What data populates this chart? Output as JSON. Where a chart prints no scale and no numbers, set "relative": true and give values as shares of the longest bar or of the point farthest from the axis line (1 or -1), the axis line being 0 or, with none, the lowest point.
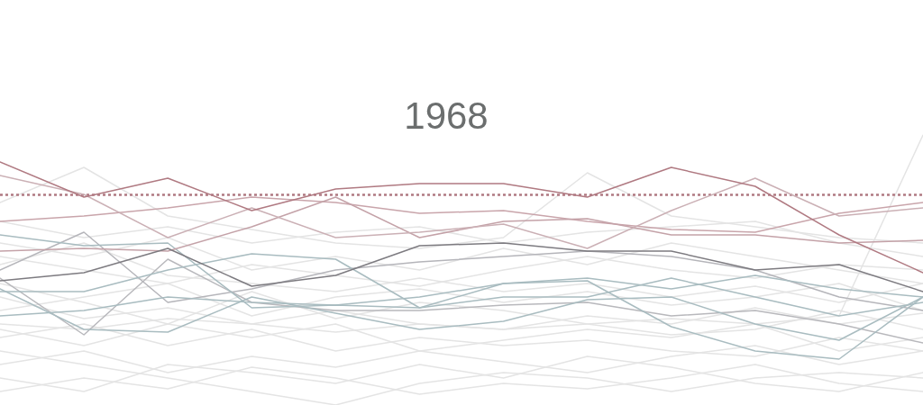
{
  "chart_data": {
    "type": "line",
    "title": "1968",
    "relative": true,
    "marker": "none",
    "categories": [
      null,
      null,
      null,
      null,
      null,
      null,
      null,
      null,
      null,
      null,
      null,
      null
    ],
    "series": [
      {
        "color": "#e4e4e4",
        "values": [
          0.3,
          0.28,
          0.32,
          0.3,
          0.27,
          0.3,
          0.28,
          0.3,
          0.32,
          0.3,
          0.33,
          1
        ]
      },
      {
        "color": "#e4e4e4",
        "values": [
          0.2,
          0.15,
          0.1,
          0.05,
          0.0,
          0.08,
          0.12,
          0.1,
          0.05,
          0.1,
          0.12,
          0.1
        ]
      },
      {
        "color": "#e4e4e4",
        "values": [
          0.75,
          0.88,
          0.7,
          0.65,
          0.6,
          0.58,
          0.62,
          0.86,
          0.7,
          0.66,
          0.62,
          0.6
        ]
      },
      {
        "color": "#e4e4e4",
        "values": [
          0.55,
          0.5,
          0.45,
          0.52,
          0.48,
          0.44,
          0.5,
          0.55,
          0.5,
          0.47,
          0.52,
          0.5
        ]
      },
      {
        "color": "#e4e4e4",
        "values": [
          0.4,
          0.32,
          0.36,
          0.3,
          0.35,
          0.3,
          0.28,
          0.33,
          0.3,
          0.36,
          0.3,
          0.34
        ]
      },
      {
        "color": "#e4e4e4",
        "values": [
          0.25,
          0.3,
          0.22,
          0.28,
          0.2,
          0.25,
          0.22,
          0.24,
          0.2,
          0.18,
          0.25,
          0.2
        ]
      },
      {
        "color": "#e4e4e4",
        "values": [
          0.15,
          0.2,
          0.12,
          0.18,
          0.14,
          0.2,
          0.16,
          0.12,
          0.18,
          0.22,
          0.15,
          0.2
        ]
      },
      {
        "color": "#e4e4e4",
        "values": [
          0.6,
          0.55,
          0.62,
          0.5,
          0.55,
          0.5,
          0.58,
          0.52,
          0.6,
          0.55,
          0.5,
          0.45
        ]
      },
      {
        "color": "#e4e4e4",
        "values": [
          0.35,
          0.4,
          0.45,
          0.33,
          0.4,
          0.43,
          0.38,
          0.42,
          0.37,
          0.4,
          0.45,
          0.35
        ]
      },
      {
        "color": "#e4e4e4",
        "values": [
          0.1,
          0.05,
          0.15,
          0.12,
          0.08,
          0.15,
          0.1,
          0.18,
          0.14,
          0.08,
          0.05,
          0.12
        ]
      },
      {
        "color": "#e4e4e4",
        "values": [
          0.45,
          0.38,
          0.3,
          0.42,
          0.32,
          0.38,
          0.35,
          0.3,
          0.26,
          0.28,
          0.35,
          0.28
        ]
      },
      {
        "color": "#e4e4e4",
        "values": [
          0.28,
          0.22,
          0.3,
          0.25,
          0.3,
          0.2,
          0.24,
          0.28,
          0.25,
          0.3,
          0.2,
          0.25
        ]
      },
      {
        "color": "#e4e4e4",
        "values": [
          0.52,
          0.6,
          0.48,
          0.45,
          0.42,
          0.47,
          0.42,
          0.45,
          0.4,
          0.44,
          0.38,
          0.45
        ]
      },
      {
        "color": "#e4e4e4",
        "values": [
          0.05,
          0.1,
          0.06,
          0.14,
          0.1,
          0.04,
          0.08,
          0.06,
          0.1,
          0.15,
          0.08,
          0.05
        ]
      },
      {
        "color": "#e4e4e4",
        "values": [
          0.68,
          0.62,
          0.66,
          0.6,
          0.64,
          0.66,
          0.6,
          0.64,
          0.66,
          0.68,
          0.6,
          0.55
        ]
      },
      {
        "color": "#b5b5ba",
        "values": [
          0.5,
          0.64,
          0.38,
          0.43,
          0.5,
          0.53,
          0.55,
          0.57,
          0.55,
          0.5,
          0.4,
          0.35
        ]
      },
      {
        "color": "#b8b8bc",
        "values": [
          0.47,
          0.26,
          0.54,
          0.38,
          0.35,
          0.35,
          0.37,
          0.38,
          0.33,
          0.35,
          0.3,
          0.23
        ]
      },
      {
        "color": "#a9bcc0",
        "values": [
          0.63,
          0.59,
          0.6,
          0.36,
          0.37,
          0.36,
          0.45,
          0.47,
          0.43,
          0.48,
          0.43,
          0.4
        ]
      },
      {
        "color": "#a9bcc0",
        "values": [
          0.42,
          0.42,
          0.5,
          0.56,
          0.54,
          0.36,
          0.4,
          0.4,
          0.47,
          0.4,
          0.33,
          0.38
        ]
      },
      {
        "color": "#a9bcc0",
        "values": [
          0.43,
          0.28,
          0.27,
          0.4,
          0.34,
          0.28,
          0.31,
          0.39,
          0.4,
          0.3,
          0.24,
          0.4
        ]
      },
      {
        "color": "#a9bcc0",
        "values": [
          0.33,
          0.35,
          0.4,
          0.38,
          0.37,
          0.4,
          0.45,
          0.46,
          0.29,
          0.2,
          0.17,
          0.4
        ]
      },
      {
        "color": "#c9a5ab",
        "values": [
          0.68,
          0.7,
          0.73,
          0.77,
          0.75,
          0.71,
          0.72,
          0.68,
          0.65,
          0.64,
          0.71,
          0.75
        ]
      },
      {
        "color": "#c4a2a8",
        "values": [
          0.57,
          0.58,
          0.57,
          0.66,
          0.77,
          0.62,
          0.68,
          0.69,
          0.63,
          0.63,
          0.6,
          0.61
        ]
      },
      {
        "color": "#cbb0b5",
        "values": [
          0.85,
          0.78,
          0.62,
          0.73,
          0.62,
          0.64,
          0.67,
          0.58,
          0.72,
          0.84,
          0.7,
          0.73
        ]
      },
      {
        "color": "#7d7b80",
        "values": [
          0.46,
          0.49,
          0.58,
          0.44,
          0.48,
          0.59,
          0.6,
          0.57,
          0.57,
          0.5,
          0.52,
          0.42
        ]
      },
      {
        "color": "#b07a82",
        "values": [
          0.9,
          0.77,
          0.84,
          0.72,
          0.8,
          0.82,
          0.82,
          0.77,
          0.88,
          0.81,
          0.63,
          0.49
        ]
      }
    ],
    "ref_lines": [
      {
        "axis": "y",
        "value": 0.78,
        "color": "#b07a82",
        "line_style": "dotted"
      }
    ]
  }
}
